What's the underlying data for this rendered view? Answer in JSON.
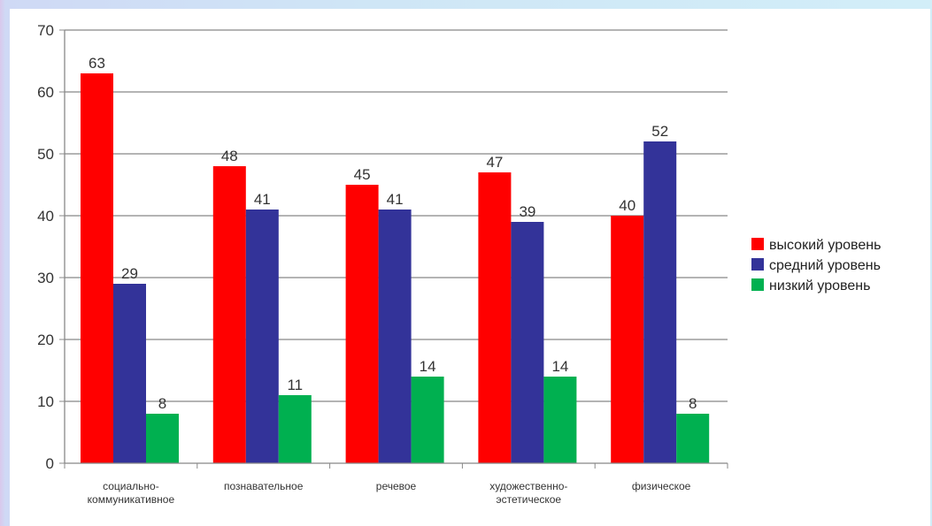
{
  "chart_data": {
    "type": "bar",
    "categories": [
      [
        "социально-",
        "коммуникативное"
      ],
      [
        "познавательное"
      ],
      [
        "речевое"
      ],
      [
        "художественно-",
        "эстетическое"
      ],
      [
        "физическое"
      ]
    ],
    "series": [
      {
        "name": "высокий уровень",
        "color": "#ff0000",
        "values": [
          63,
          48,
          45,
          47,
          40
        ]
      },
      {
        "name": "средний уровень",
        "color": "#333399",
        "values": [
          29,
          41,
          41,
          39,
          52
        ]
      },
      {
        "name": "низкий уровень",
        "color": "#00b050",
        "values": [
          8,
          11,
          14,
          14,
          8
        ]
      }
    ],
    "ylim": [
      0,
      70
    ],
    "yticks": [
      0,
      10,
      20,
      30,
      40,
      50,
      60,
      70
    ],
    "grid": true,
    "legend_position": "right",
    "title": "",
    "xlabel": "",
    "ylabel": ""
  }
}
